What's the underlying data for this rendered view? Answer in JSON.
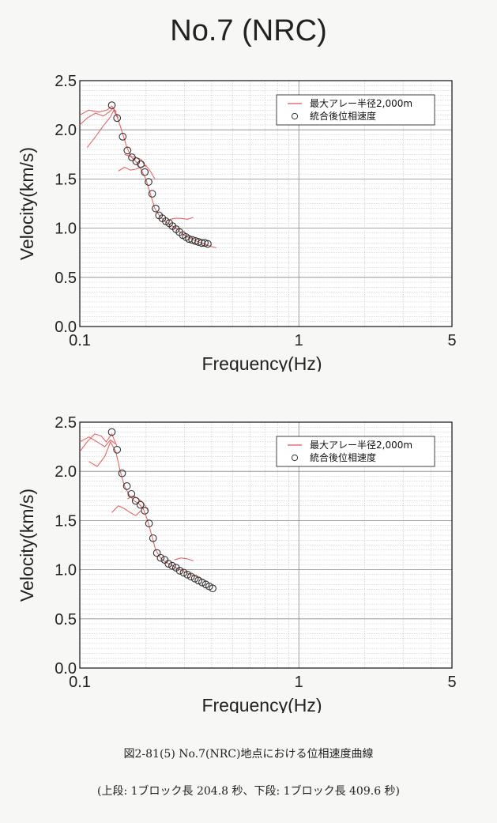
{
  "page": {
    "title": "No.7 (NRC)",
    "caption": "図2-81(5) No.7(NRC)地点における位相速度曲線",
    "subcaption": "(上段: 1ブロック長 204.8 秒、下段: 1ブロック長 409.6 秒)"
  },
  "chart_data": [
    {
      "type": "scatter",
      "xlabel": "Frequency(Hz)",
      "ylabel": "Velocity(km/s)",
      "x_scale": "log",
      "xlim": [
        0.1,
        5
      ],
      "ylim": [
        0,
        2.5
      ],
      "x_ticks": [
        "0.1",
        "1",
        "5"
      ],
      "y_ticks": [
        "0.0",
        "0.5",
        "1.0",
        "1.5",
        "2.0",
        "2.5"
      ],
      "grid": true,
      "legend_position": "top-right",
      "colors": {
        "red_series": "#e05555",
        "circles": "#333333"
      },
      "series": [
        {
          "name": "最大アレー半径2,000m",
          "style": "red-lines",
          "segments": [
            [
              [
                0.1,
                2.05
              ],
              [
                0.108,
                2.12
              ],
              [
                0.118,
                2.17
              ],
              [
                0.128,
                2.14
              ],
              [
                0.136,
                2.18
              ],
              [
                0.142,
                2.22
              ],
              [
                0.15,
                2.12
              ]
            ],
            [
              [
                0.1,
                2.15
              ],
              [
                0.11,
                2.2
              ],
              [
                0.122,
                2.18
              ],
              [
                0.133,
                2.2
              ],
              [
                0.14,
                2.24
              ],
              [
                0.147,
                2.18
              ]
            ],
            [
              [
                0.108,
                1.82
              ],
              [
                0.118,
                1.93
              ],
              [
                0.128,
                2.04
              ],
              [
                0.138,
                2.13
              ],
              [
                0.143,
                2.2
              ],
              [
                0.15,
                2.1
              ],
              [
                0.157,
                1.96
              ],
              [
                0.164,
                1.82
              ],
              [
                0.172,
                1.72
              ],
              [
                0.18,
                1.68
              ],
              [
                0.19,
                1.6
              ],
              [
                0.2,
                1.5
              ],
              [
                0.21,
                1.35
              ],
              [
                0.22,
                1.2
              ],
              [
                0.232,
                1.12
              ],
              [
                0.245,
                1.07
              ],
              [
                0.26,
                1.03
              ],
              [
                0.275,
                1.0
              ],
              [
                0.29,
                0.95
              ],
              [
                0.31,
                0.91
              ],
              [
                0.33,
                0.88
              ],
              [
                0.36,
                0.85
              ],
              [
                0.39,
                0.82
              ],
              [
                0.42,
                0.8
              ]
            ],
            [
              [
                0.15,
                1.58
              ],
              [
                0.16,
                1.62
              ],
              [
                0.17,
                1.59
              ],
              [
                0.18,
                1.6
              ],
              [
                0.19,
                1.62
              ],
              [
                0.2,
                1.64
              ],
              [
                0.21,
                1.58
              ],
              [
                0.22,
                1.5
              ]
            ],
            [
              [
                0.16,
                1.75
              ],
              [
                0.17,
                1.73
              ],
              [
                0.18,
                1.72
              ],
              [
                0.19,
                1.7
              ],
              [
                0.2,
                1.62
              ]
            ],
            [
              [
                0.25,
                1.08
              ],
              [
                0.27,
                1.1
              ],
              [
                0.29,
                1.1
              ],
              [
                0.31,
                1.09
              ],
              [
                0.33,
                1.11
              ]
            ]
          ]
        },
        {
          "name": "統合後位相速度",
          "style": "circles",
          "x": [
            0.14,
            0.148,
            0.157,
            0.165,
            0.173,
            0.181,
            0.19,
            0.198,
            0.206,
            0.214,
            0.222,
            0.23,
            0.238,
            0.247,
            0.256,
            0.265,
            0.275,
            0.285,
            0.295,
            0.305,
            0.315,
            0.326,
            0.337,
            0.348,
            0.36,
            0.372,
            0.384
          ],
          "y": [
            2.25,
            2.12,
            1.93,
            1.79,
            1.72,
            1.68,
            1.65,
            1.57,
            1.47,
            1.35,
            1.2,
            1.13,
            1.1,
            1.07,
            1.05,
            1.02,
            0.99,
            0.96,
            0.93,
            0.91,
            0.89,
            0.88,
            0.87,
            0.86,
            0.85,
            0.85,
            0.84
          ]
        }
      ]
    },
    {
      "type": "scatter",
      "xlabel": "Frequency(Hz)",
      "ylabel": "Velocity(km/s)",
      "x_scale": "log",
      "xlim": [
        0.1,
        5
      ],
      "ylim": [
        0,
        2.5
      ],
      "x_ticks": [
        "0.1",
        "1",
        "5"
      ],
      "y_ticks": [
        "0.0",
        "0.5",
        "1.0",
        "1.5",
        "2.0",
        "2.5"
      ],
      "grid": true,
      "legend_position": "top-right",
      "colors": {
        "red_series": "#e05555",
        "circles": "#333333"
      },
      "series": [
        {
          "name": "最大アレー半径2,000m",
          "style": "red-lines",
          "segments": [
            [
              [
                0.1,
                2.2
              ],
              [
                0.108,
                2.3
              ],
              [
                0.117,
                2.38
              ],
              [
                0.125,
                2.36
              ],
              [
                0.132,
                2.3
              ],
              [
                0.14,
                2.38
              ],
              [
                0.148,
                2.25
              ]
            ],
            [
              [
                0.1,
                2.3
              ],
              [
                0.11,
                2.35
              ],
              [
                0.12,
                2.3
              ],
              [
                0.13,
                2.25
              ],
              [
                0.138,
                2.32
              ],
              [
                0.145,
                2.28
              ]
            ],
            [
              [
                0.11,
                2.1
              ],
              [
                0.12,
                2.05
              ],
              [
                0.13,
                2.15
              ],
              [
                0.138,
                2.3
              ],
              [
                0.146,
                2.2
              ],
              [
                0.153,
                2.0
              ],
              [
                0.16,
                1.85
              ],
              [
                0.168,
                1.76
              ],
              [
                0.177,
                1.7
              ],
              [
                0.186,
                1.67
              ],
              [
                0.195,
                1.62
              ],
              [
                0.204,
                1.5
              ],
              [
                0.213,
                1.35
              ],
              [
                0.222,
                1.2
              ],
              [
                0.232,
                1.13
              ],
              [
                0.245,
                1.08
              ],
              [
                0.26,
                1.05
              ],
              [
                0.28,
                1.01
              ],
              [
                0.3,
                0.98
              ],
              [
                0.32,
                0.95
              ],
              [
                0.35,
                0.92
              ],
              [
                0.38,
                0.88
              ]
            ],
            [
              [
                0.14,
                1.58
              ],
              [
                0.15,
                1.65
              ],
              [
                0.16,
                1.62
              ],
              [
                0.17,
                1.58
              ],
              [
                0.18,
                1.55
              ],
              [
                0.19,
                1.6
              ]
            ],
            [
              [
                0.165,
                1.72
              ],
              [
                0.175,
                1.75
              ],
              [
                0.185,
                1.72
              ],
              [
                0.195,
                1.68
              ],
              [
                0.205,
                1.6
              ]
            ],
            [
              [
                0.27,
                1.1
              ],
              [
                0.29,
                1.12
              ],
              [
                0.31,
                1.11
              ],
              [
                0.33,
                1.09
              ]
            ]
          ]
        },
        {
          "name": "統合後位相速度",
          "style": "circles",
          "x": [
            0.14,
            0.148,
            0.156,
            0.164,
            0.172,
            0.18,
            0.189,
            0.198,
            0.207,
            0.216,
            0.225,
            0.234,
            0.244,
            0.254,
            0.264,
            0.275,
            0.286,
            0.298,
            0.31,
            0.322,
            0.335,
            0.348,
            0.362,
            0.376,
            0.39,
            0.404
          ],
          "y": [
            2.4,
            2.22,
            1.98,
            1.85,
            1.77,
            1.7,
            1.66,
            1.6,
            1.47,
            1.32,
            1.17,
            1.12,
            1.1,
            1.06,
            1.04,
            1.02,
            0.99,
            0.97,
            0.95,
            0.93,
            0.91,
            0.89,
            0.87,
            0.85,
            0.83,
            0.81
          ]
        }
      ]
    }
  ]
}
